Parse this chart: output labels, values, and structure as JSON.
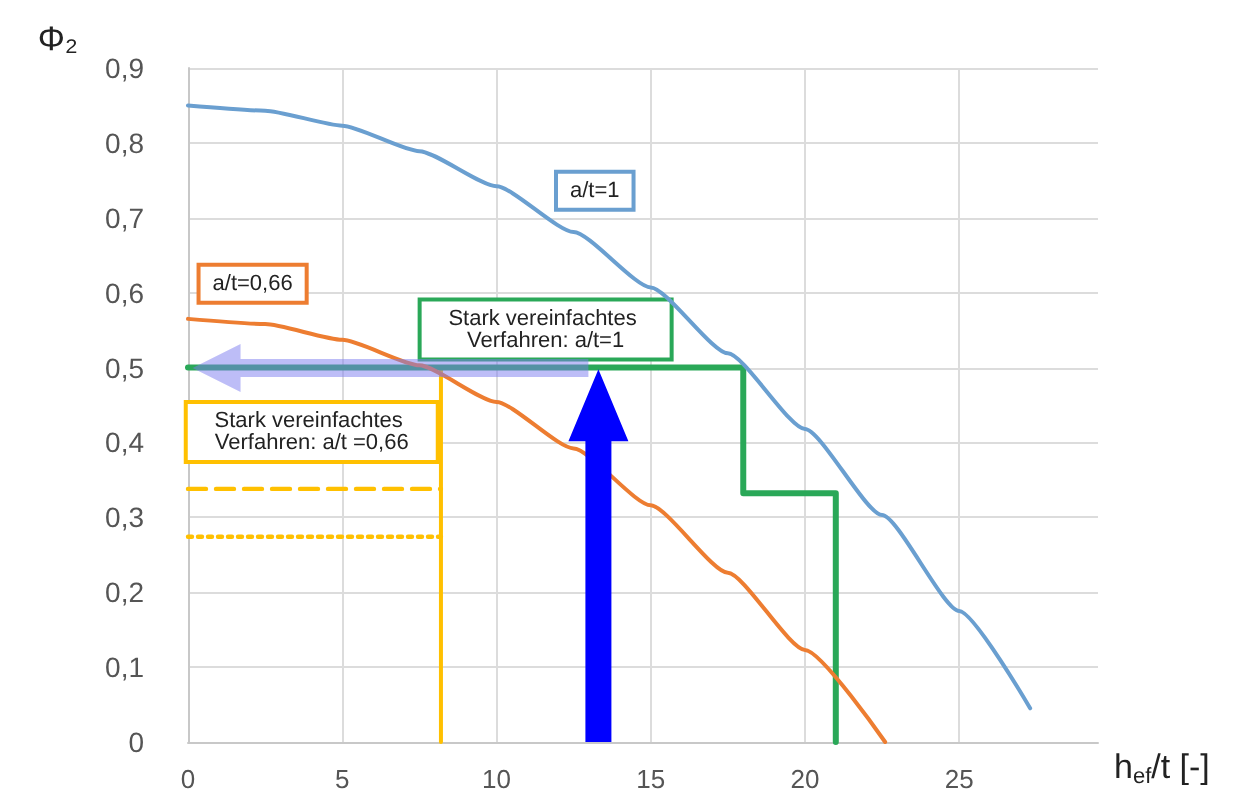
{
  "chart_data": {
    "type": "line",
    "xlabel": "h$_{ef}$/t [-]",
    "ylabel": "Φ₂",
    "xlim": [
      0,
      29.5
    ],
    "xticks": [
      0,
      5,
      10,
      15,
      20,
      25
    ],
    "ylim": [
      0,
      0.9
    ],
    "yticks": [
      0,
      {
        "value": 0.1,
        "label": "0,1"
      },
      {
        "value": 0.2,
        "label": "0,2"
      },
      {
        "value": 0.3,
        "label": "0,3"
      },
      {
        "value": 0.4,
        "label": "0,4"
      },
      {
        "value": 0.5,
        "label": "0,5"
      },
      {
        "value": 0.6,
        "label": "0,6"
      },
      {
        "value": 0.7,
        "label": "0,7"
      },
      {
        "value": 0.8,
        "label": "0,8"
      },
      {
        "value": 0.9,
        "label": "0,9"
      }
    ],
    "grid": true,
    "marker": "none",
    "series": [
      {
        "name": "a/t=1",
        "color": "#6a9fd0",
        "x": [
          0,
          2.5,
          5,
          7.5,
          10,
          12.5,
          15,
          17.5,
          20,
          22.5,
          25,
          27.3
        ],
        "values": [
          0.85,
          0.843,
          0.823,
          0.789,
          0.742,
          0.681,
          0.607,
          0.519,
          0.418,
          0.303,
          0.175,
          0.045
        ]
      },
      {
        "name": "a/t=0,66",
        "color": "#ed7d31",
        "x": [
          0,
          2.5,
          5,
          7.5,
          10,
          12.5,
          15,
          17.5,
          20,
          22.6
        ],
        "values": [
          0.565,
          0.558,
          0.537,
          0.503,
          0.454,
          0.392,
          0.316,
          0.226,
          0.123,
          0
        ]
      },
      {
        "name": "Stark vereinfachtes Verfahren: a/t=1",
        "color": "#2aa858",
        "x": [
          0,
          18,
          18,
          21,
          21
        ],
        "values": [
          0.5,
          0.5,
          0.332,
          0.332,
          0
        ]
      },
      {
        "name": "Stark vereinfachtes Verfahren: a/t =0,66",
        "color": "#ffc000",
        "x": [
          0,
          8.2,
          8.2
        ],
        "values": [
          0.5,
          0.5,
          0
        ]
      },
      {
        "color": "#ffc000",
        "line_style": "dashed",
        "x": [
          0,
          8.2
        ],
        "values": [
          0.338,
          0.338
        ]
      },
      {
        "color": "#ffc000",
        "line_style": "dotted",
        "x": [
          0,
          8.2
        ],
        "values": [
          0.274,
          0.274
        ]
      }
    ]
  }
}
